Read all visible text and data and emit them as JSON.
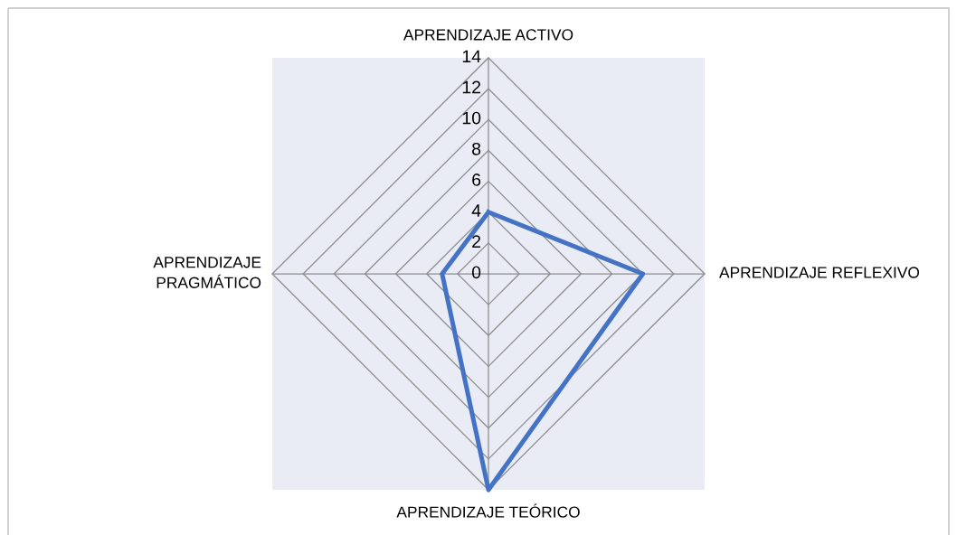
{
  "chart_data": {
    "type": "radar",
    "categories": [
      "APRENDIZAJE ACTIVO",
      "APRENDIZAJE REFLEXIVO",
      "APRENDIZAJE TEÓRICO",
      "APRENDIZAJE PRAGMÁTICO"
    ],
    "series": [
      {
        "color": "#4472c4",
        "values": [
          4,
          10,
          14,
          3
        ]
      }
    ],
    "ylim": [
      0,
      14
    ],
    "yticks": [
      0,
      2,
      4,
      6,
      8,
      10,
      12,
      14
    ],
    "grid": true,
    "marker": "none",
    "line_style": "solid"
  }
}
